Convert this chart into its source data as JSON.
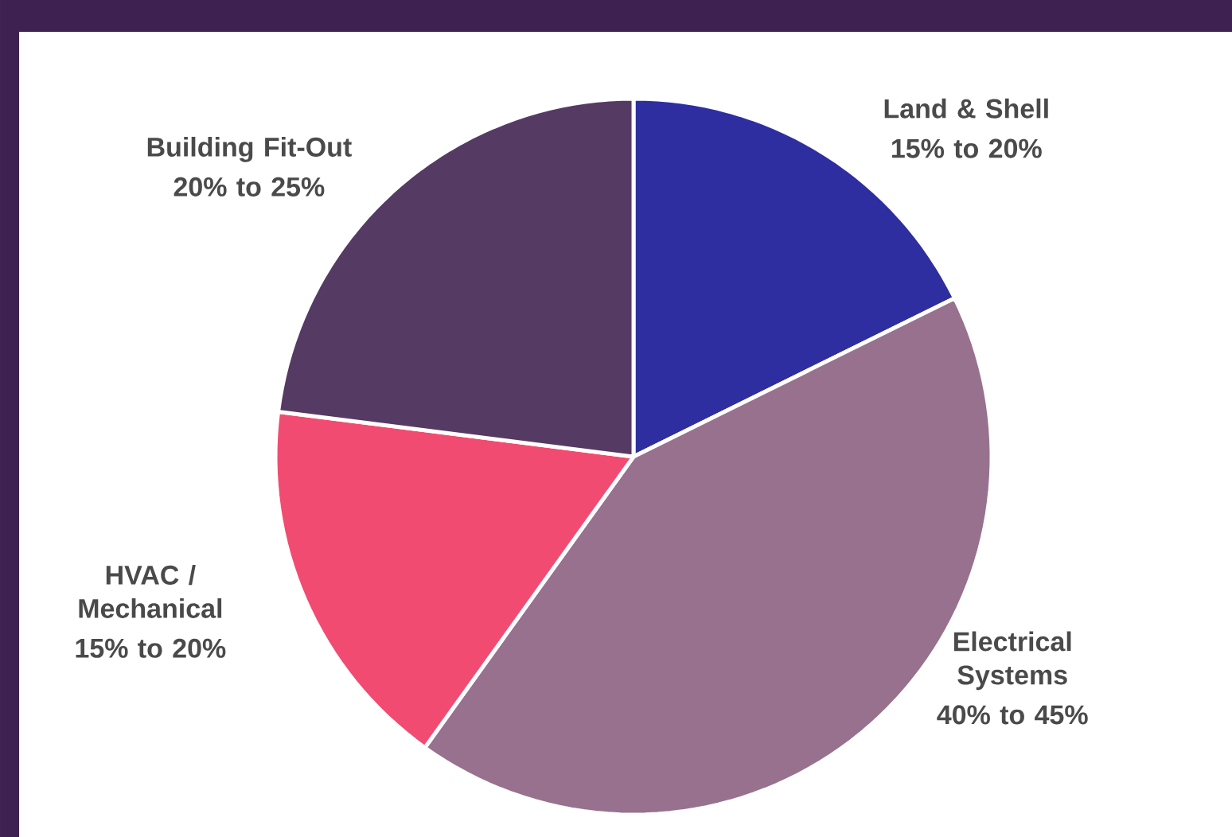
{
  "chart_data": {
    "type": "pie",
    "categories": [
      "Land & Shell",
      "Electrical Systems",
      "HVAC / Mechanical",
      "Building Fit-Out"
    ],
    "values": [
      17.7,
      42.2,
      17.1,
      23.0
    ],
    "annotations": [
      "15% to 20%",
      "40% to 45%",
      "15% to 20%",
      "20% to 25%"
    ],
    "colors": [
      "#2e2ea0",
      "#98718e",
      "#f24b72",
      "#553a63"
    ]
  }
}
